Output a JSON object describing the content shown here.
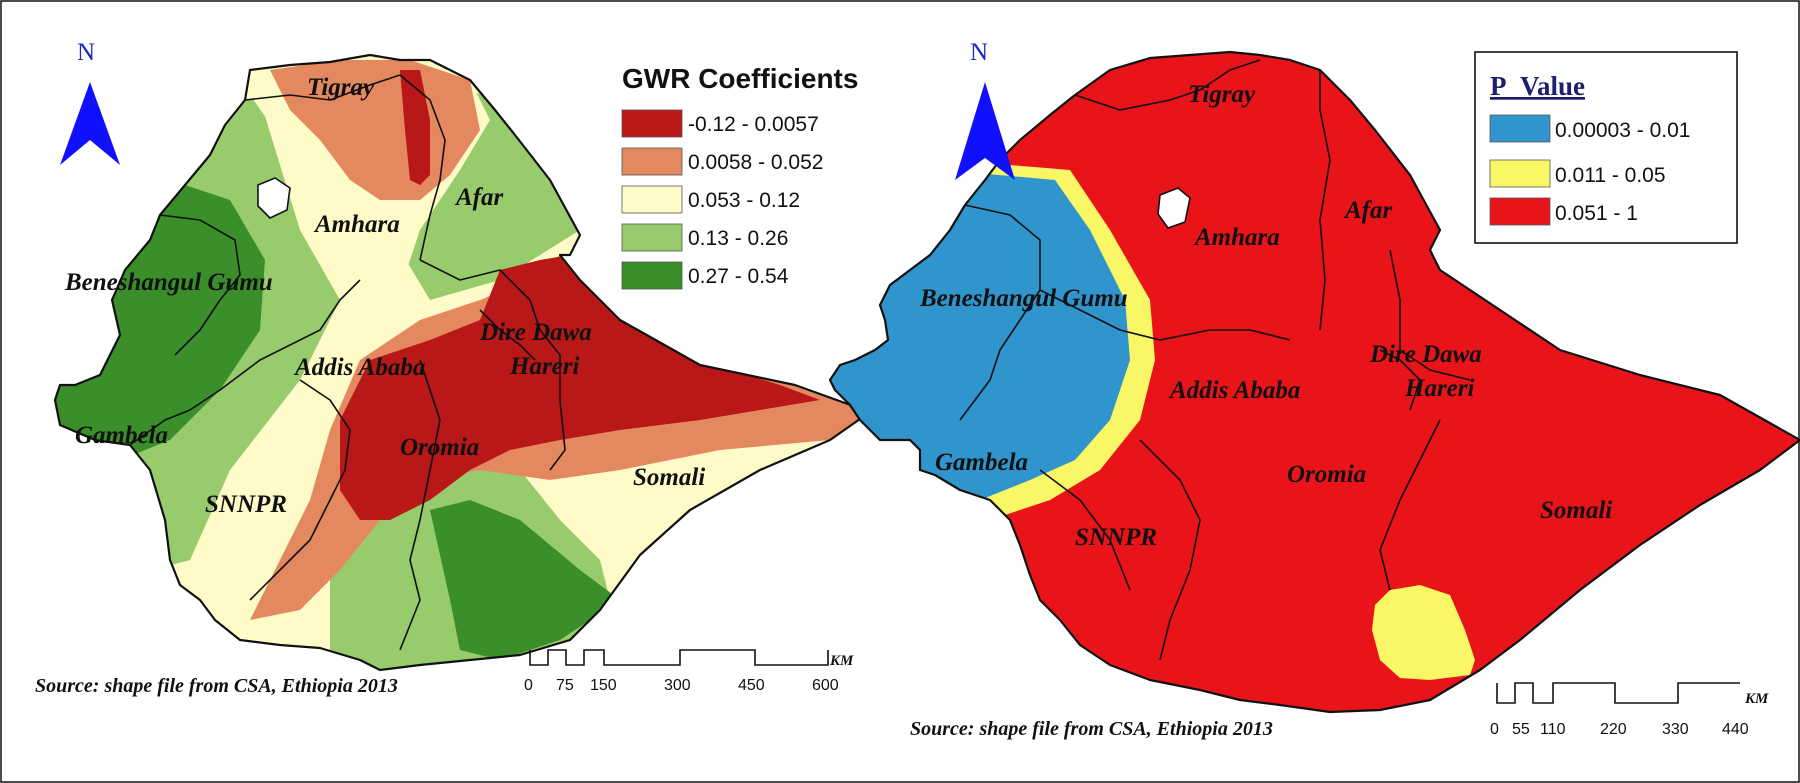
{
  "left_map": {
    "legend": {
      "title": "GWR Coefficients",
      "classes": [
        {
          "label": "-0.12 - 0.0057",
          "color": "#b81818"
        },
        {
          "label": "0.0058 - 0.052",
          "color": "#e4885f"
        },
        {
          "label": "0.053 - 0.12",
          "color": "#fefbc8"
        },
        {
          "label": "0.13 - 0.26",
          "color": "#98cb6c"
        },
        {
          "label": "0.27 - 0.54",
          "color": "#3a8f2a"
        }
      ]
    },
    "north": "N",
    "regions": [
      "Tigray",
      "Afar",
      "Amhara",
      "Beneshangul Gumu",
      "Dire Dawa",
      "Hareri",
      "Addis Ababa",
      "Gambela",
      "Oromia",
      "Somali",
      "SNNPR"
    ],
    "source": "Source: shape file from CSA, Ethiopia 2013",
    "scale": {
      "ticks": [
        "0",
        "75",
        "150",
        "300",
        "450",
        "600"
      ],
      "unit": "KM"
    }
  },
  "right_map": {
    "legend": {
      "title": "P_Value",
      "classes": [
        {
          "label": "0.00003 - 0.01",
          "color": "#2f95cc"
        },
        {
          "label": "0.011 - 0.05",
          "color": "#f9f766"
        },
        {
          "label": "0.051 - 1",
          "color": "#e8141a"
        }
      ]
    },
    "north": "N",
    "regions": [
      "Tigray",
      "Afar",
      "Amhara",
      "Beneshangul Gumu",
      "Dire Dawa",
      "Hareri",
      "Addis Ababa",
      "Gambela",
      "Oromia",
      "Somali",
      "SNNPR"
    ],
    "source": "Source: shape file from CSA, Ethiopia 2013",
    "scale": {
      "ticks": [
        "0",
        "55",
        "110",
        "220",
        "330",
        "440"
      ],
      "unit": "KM"
    }
  }
}
